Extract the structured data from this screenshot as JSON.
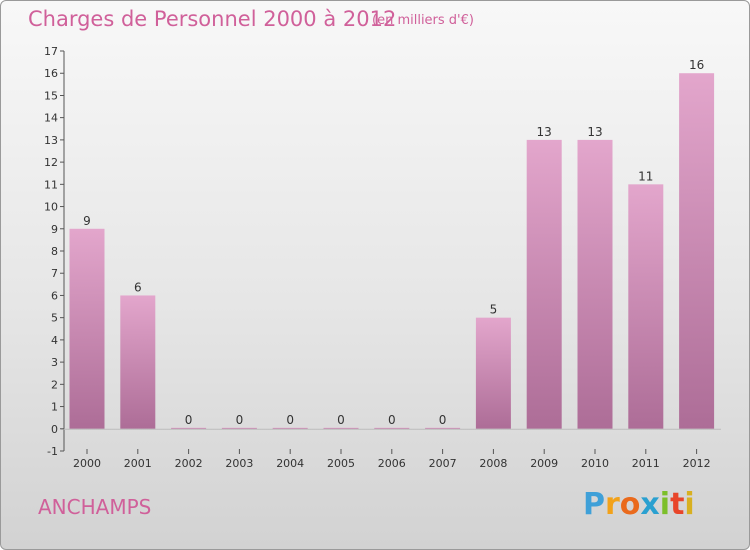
{
  "title": "Charges de Personnel 2000 à 2012",
  "subtitle": "(en milliers d'€)",
  "commune": "ANCHAMPS",
  "logo": {
    "letters": [
      "P",
      "r",
      "o",
      "x",
      "i",
      "t",
      "i"
    ],
    "colors": [
      "#3fa0d8",
      "#f2a21a",
      "#ea6a1c",
      "#2aa0d0",
      "#7cbf2a",
      "#e8452a",
      "#d8b020"
    ]
  },
  "colors": {
    "accent": "#d0609a",
    "bar_top": "#e3a6cc",
    "bar_bottom": "#ad6d97"
  },
  "chart_data": {
    "type": "bar",
    "categories": [
      "2000",
      "2001",
      "2002",
      "2003",
      "2004",
      "2005",
      "2006",
      "2007",
      "2008",
      "2009",
      "2010",
      "2011",
      "2012"
    ],
    "values": [
      9,
      6,
      0,
      0,
      0,
      0,
      0,
      0,
      5,
      13,
      13,
      11,
      16
    ],
    "yticks": [
      -1,
      0,
      1,
      2,
      3,
      4,
      5,
      6,
      7,
      8,
      9,
      10,
      11,
      12,
      13,
      14,
      15,
      16,
      17
    ],
    "ylim": [
      -1,
      17
    ],
    "grid": false,
    "data_labels": true
  }
}
